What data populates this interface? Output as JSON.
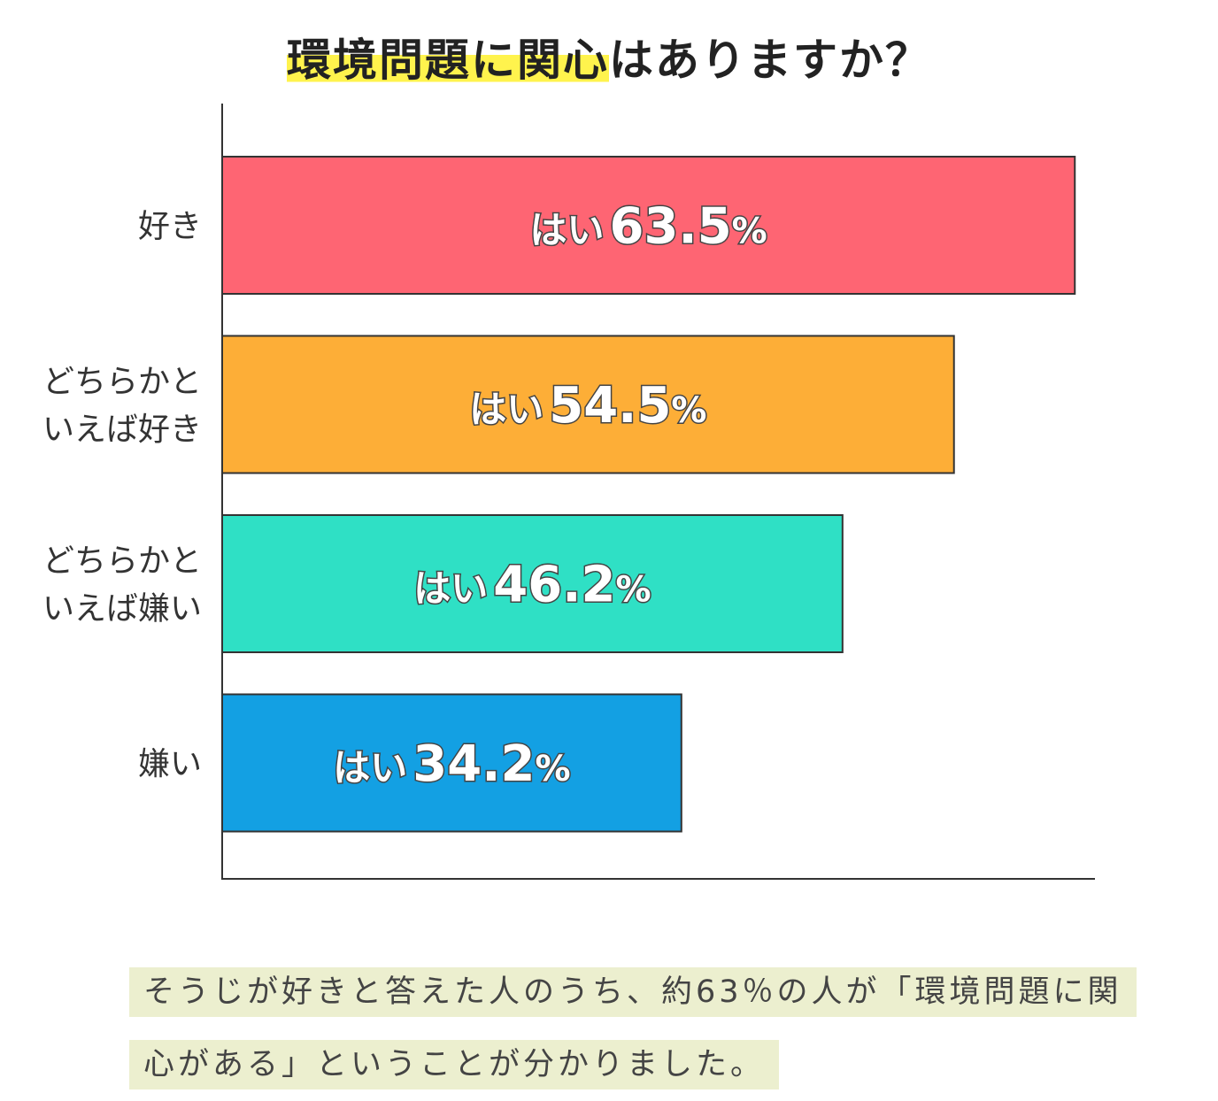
{
  "title": {
    "highlight": "環境問題に関心",
    "rest": "はありますか？"
  },
  "chart_data": {
    "type": "bar",
    "orientation": "horizontal",
    "categories": [
      [
        "好き"
      ],
      [
        "どちらかと",
        "いえば好き"
      ],
      [
        "どちらかと",
        "いえば嫌い"
      ],
      [
        "嫌い"
      ]
    ],
    "values": [
      63.5,
      54.5,
      46.2,
      34.2
    ],
    "label_prefix": "はい",
    "label_unit": "%",
    "colors": [
      "#fe6573",
      "#fdae37",
      "#2fe0c5",
      "#13a0e3"
    ],
    "xlim": [
      0,
      65
    ],
    "grid": false,
    "legend": "none"
  },
  "note": "そうじが好きと答えた人のうち、約63％の人が「環境問題に関心がある」ということが分かりました。"
}
